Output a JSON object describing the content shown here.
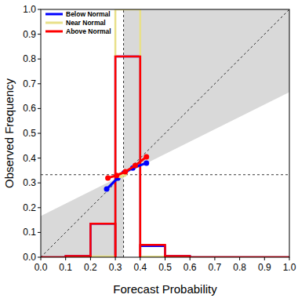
{
  "chart_data": {
    "type": "reliability",
    "xlabel": "Forecast Probability",
    "ylabel": "Observed Frequency",
    "xlim": [
      0,
      1
    ],
    "ylim": [
      0,
      1
    ],
    "xticks": [
      {
        "value": 0,
        "label": "0.0"
      },
      {
        "value": 0.1,
        "label": "0.1"
      },
      {
        "value": 0.2,
        "label": "0.2"
      },
      {
        "value": 0.3,
        "label": "0.3"
      },
      {
        "value": 0.4,
        "label": "0.4"
      },
      {
        "value": 0.5,
        "label": "0.5"
      },
      {
        "value": 0.6,
        "label": "0.6"
      },
      {
        "value": 0.7,
        "label": "0.7"
      },
      {
        "value": 0.8,
        "label": "0.8"
      },
      {
        "value": 0.9,
        "label": "0.9"
      },
      {
        "value": 1,
        "label": "1.0"
      }
    ],
    "yticks": [
      {
        "value": 0,
        "label": "0.0"
      },
      {
        "value": 0.1,
        "label": "0.1"
      },
      {
        "value": 0.2,
        "label": "0.2"
      },
      {
        "value": 0.3,
        "label": "0.3"
      },
      {
        "value": 0.4,
        "label": "0.4"
      },
      {
        "value": 0.5,
        "label": "0.5"
      },
      {
        "value": 0.6,
        "label": "0.6"
      },
      {
        "value": 0.7,
        "label": "0.7"
      },
      {
        "value": 0.8,
        "label": "0.8"
      },
      {
        "value": 0.9,
        "label": "0.9"
      },
      {
        "value": 1,
        "label": "1.0"
      }
    ],
    "climatology": 0.333,
    "legend": "upper left",
    "bins": [
      0,
      0.1,
      0.2,
      0.3,
      0.4,
      0.5,
      0.6,
      0.7,
      0.8,
      0.9,
      1
    ],
    "series": [
      {
        "name": "Below Normal",
        "color": "#0000ff",
        "frequencies": [
          0,
          0.005,
          0.135,
          0.81,
          0.045,
          0.005,
          0,
          0,
          0,
          0
        ],
        "x": [
          0.265,
          0.31,
          0.335,
          0.37,
          0.425
        ],
        "values": [
          0.275,
          0.32,
          0.34,
          0.36,
          0.38
        ]
      },
      {
        "name": "Near Normal",
        "color": "#e8e08a",
        "frequencies": [
          0,
          0,
          0.003,
          1.0,
          0.002,
          0,
          0,
          0,
          0,
          0
        ],
        "x": [
          0.32,
          0.335
        ],
        "values": [
          0.33,
          0.335
        ]
      },
      {
        "name": "Above Normal",
        "color": "#ff0000",
        "frequencies": [
          0,
          0.005,
          0.135,
          0.81,
          0.05,
          0.005,
          0,
          0,
          0,
          0
        ],
        "x": [
          0.27,
          0.305,
          0.34,
          0.38,
          0.425
        ],
        "values": [
          0.32,
          0.33,
          0.345,
          0.37,
          0.405
        ]
      }
    ]
  }
}
